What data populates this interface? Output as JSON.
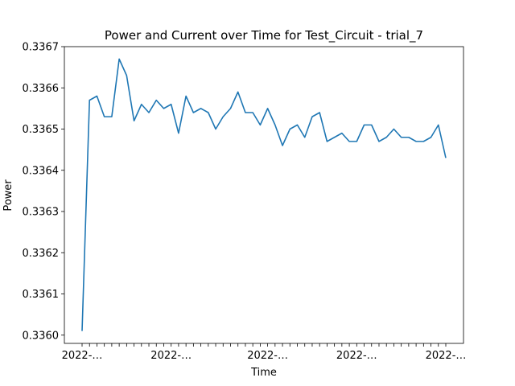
{
  "chart_data": {
    "type": "line",
    "title": "Power and Current over Time for Test_Circuit - trial_7",
    "xlabel": "Time",
    "ylabel": "Power",
    "ylim": [
      0.33598,
      0.3367
    ],
    "yticks": [
      "0.3360",
      "0.3361",
      "0.3362",
      "0.3363",
      "0.3364",
      "0.3365",
      "0.3366",
      "0.3367"
    ],
    "xtick_label_overlap": "2022-…",
    "grid": false,
    "legend": "none",
    "line_color": "#1f77b4",
    "series": [
      {
        "values": [
          0.33601,
          0.33657,
          0.33658,
          0.33653,
          0.33653,
          0.33667,
          0.33663,
          0.33652,
          0.33656,
          0.33654,
          0.33657,
          0.33655,
          0.33656,
          0.33649,
          0.33658,
          0.33654,
          0.33655,
          0.33654,
          0.3365,
          0.33653,
          0.33655,
          0.33659,
          0.33654,
          0.33654,
          0.33651,
          0.33655,
          0.33651,
          0.33646,
          0.3365,
          0.33651,
          0.33648,
          0.33653,
          0.33654,
          0.33647,
          0.33648,
          0.33649,
          0.33647,
          0.33647,
          0.33651,
          0.33651,
          0.33647,
          0.33648,
          0.3365,
          0.33648,
          0.33648,
          0.33647,
          0.33647,
          0.33648,
          0.33651,
          0.33643
        ]
      }
    ]
  }
}
